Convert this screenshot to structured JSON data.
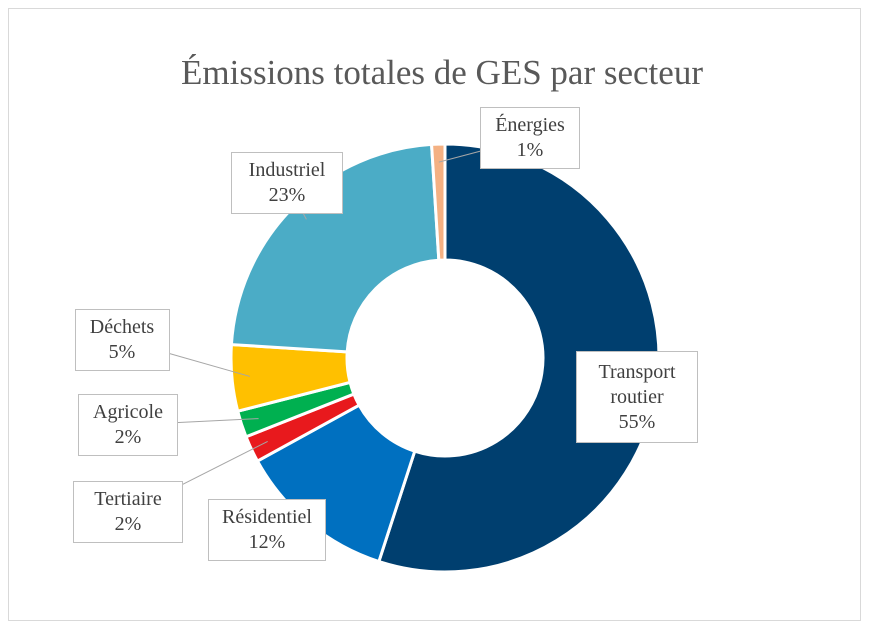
{
  "chart_data": {
    "type": "donut",
    "title": "Émissions totales de GES par secteur",
    "categories": [
      "Transport routier",
      "Résidentiel",
      "Tertiaire",
      "Agricole",
      "Déchets",
      "Industriel",
      "Énergies"
    ],
    "values": [
      55,
      12,
      2,
      2,
      5,
      23,
      1
    ],
    "value_labels": [
      "55%",
      "12%",
      "2%",
      "2%",
      "5%",
      "23%",
      "1%"
    ],
    "colors": [
      "#003f6f",
      "#0070c0",
      "#e8191d",
      "#00b050",
      "#ffc000",
      "#4bacc6",
      "#f4b183"
    ]
  }
}
